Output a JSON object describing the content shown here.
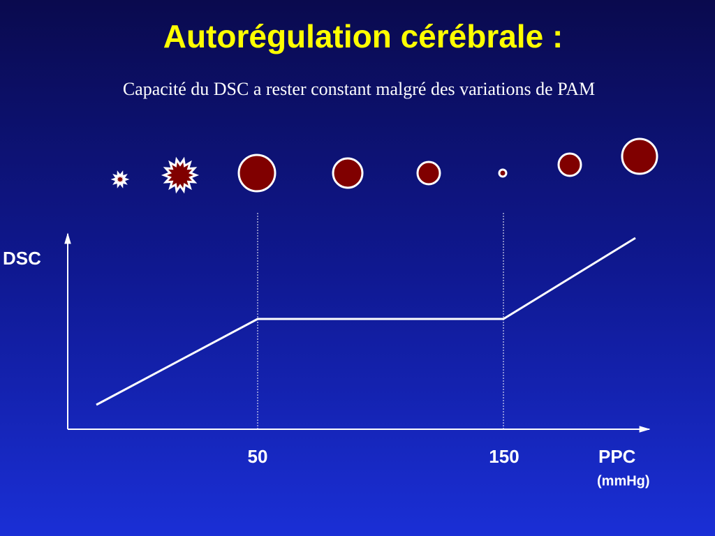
{
  "header": {
    "title": "Autorégulation cérébrale :",
    "subtitle": "Capacité du DSC a rester constant malgré des variations de PAM"
  },
  "diagram": {
    "y_axis_label": "DSC",
    "x_ticks": [
      "50",
      "150"
    ],
    "x_axis_label": "PPC",
    "x_axis_unit": "(mmHg)"
  }
}
